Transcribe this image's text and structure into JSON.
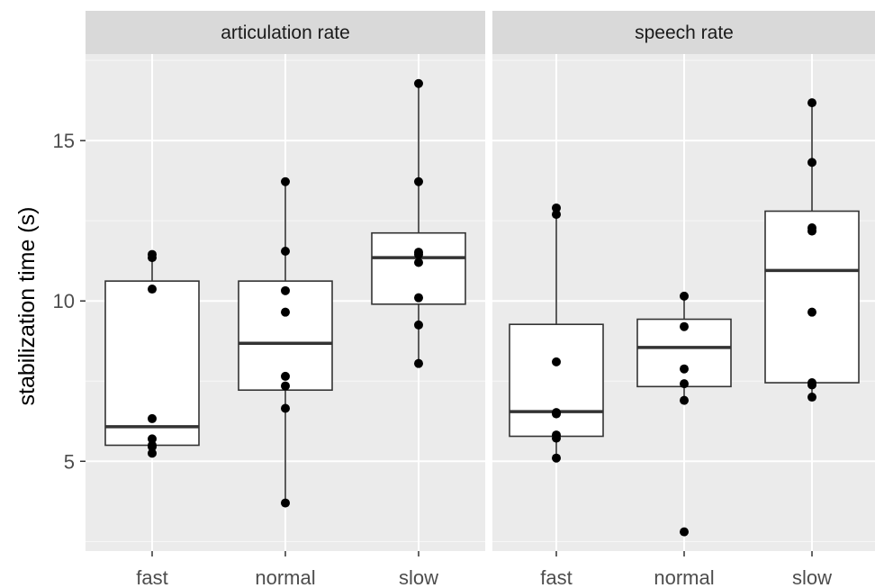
{
  "chart_data": {
    "type": "boxplot",
    "ylabel": "stabilization time (s)",
    "ylim": [
      2.2,
      17.7
    ],
    "yticks": [
      5,
      10,
      15
    ],
    "grid": true,
    "categories": [
      "fast",
      "normal",
      "slow"
    ],
    "panels": [
      {
        "title": "articulation rate",
        "boxes": [
          {
            "category": "fast",
            "whisker_low": 5.25,
            "q1": 5.5,
            "median": 6.08,
            "q3": 10.62,
            "whisker_high": 11.45
          },
          {
            "category": "normal",
            "whisker_low": 3.7,
            "q1": 7.22,
            "median": 8.68,
            "q3": 10.62,
            "whisker_high": 13.72
          },
          {
            "category": "slow",
            "whisker_low": 8.05,
            "q1": 9.9,
            "median": 11.35,
            "q3": 12.12,
            "whisker_high": 16.78
          }
        ],
        "points": [
          {
            "category": "fast",
            "values": [
              11.45,
              11.35,
              10.37,
              6.33,
              5.7,
              5.5,
              5.45,
              5.25
            ]
          },
          {
            "category": "normal",
            "values": [
              13.72,
              11.55,
              10.32,
              9.65,
              7.65,
              7.35,
              6.65,
              3.7
            ]
          },
          {
            "category": "slow",
            "values": [
              16.78,
              13.72,
              11.52,
              11.45,
              11.2,
              10.1,
              9.25,
              8.05
            ]
          }
        ]
      },
      {
        "title": "speech rate",
        "boxes": [
          {
            "category": "fast",
            "whisker_low": 5.1,
            "q1": 5.78,
            "median": 6.55,
            "q3": 9.27,
            "whisker_high": 12.9
          },
          {
            "category": "normal",
            "whisker_low": 6.9,
            "q1": 7.33,
            "median": 8.55,
            "q3": 9.43,
            "whisker_high": 10.15
          },
          {
            "category": "slow",
            "whisker_low": 7.0,
            "q1": 7.45,
            "median": 10.95,
            "q3": 12.8,
            "whisker_high": 16.18
          }
        ],
        "points": [
          {
            "category": "fast",
            "values": [
              12.9,
              12.7,
              8.1,
              6.52,
              6.48,
              5.82,
              5.72,
              5.1
            ]
          },
          {
            "category": "normal",
            "values": [
              10.15,
              9.2,
              7.88,
              7.42,
              6.9,
              2.8
            ]
          },
          {
            "category": "slow",
            "values": [
              16.18,
              14.32,
              12.28,
              12.18,
              9.65,
              7.45,
              7.38,
              7.0
            ]
          }
        ]
      }
    ]
  }
}
